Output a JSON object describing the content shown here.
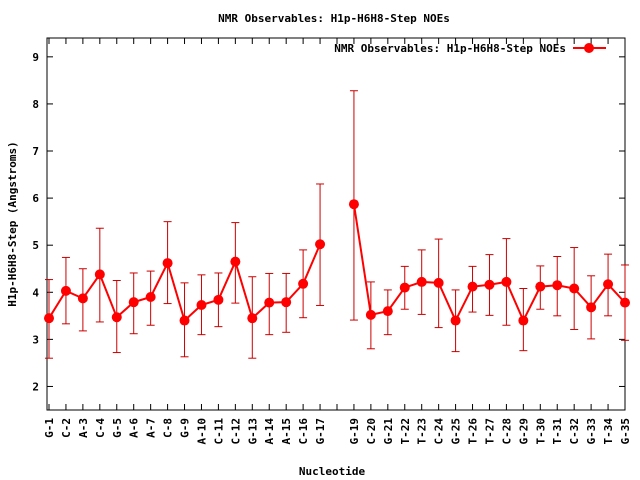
{
  "chart_data": {
    "type": "line",
    "title": "NMR Observables: H1p-H6H8-Step NOEs",
    "xlabel": "Nucleotide",
    "ylabel": "H1p-H6H8-Step (Angstroms)",
    "legend": {
      "label": "NMR Observables: H1p-H6H8-Step NOEs",
      "placement": "top-right"
    },
    "ylim": [
      1.5,
      9.4
    ],
    "yticks": [
      2,
      3,
      4,
      5,
      6,
      7,
      8,
      9
    ],
    "grid": false,
    "series_color": "#ff0000",
    "error_color": "#cc0000",
    "categories": [
      "G-1",
      "C-2",
      "A-3",
      "C-4",
      "G-5",
      "A-6",
      "A-7",
      "C-8",
      "G-9",
      "A-10",
      "C-11",
      "C-12",
      "G-13",
      "A-14",
      "A-15",
      "C-16",
      "G-17",
      "",
      "G-19",
      "C-20",
      "G-21",
      "T-22",
      "T-23",
      "C-24",
      "G-25",
      "T-26",
      "T-27",
      "C-28",
      "G-29",
      "T-30",
      "T-31",
      "C-32",
      "G-33",
      "T-34",
      "G-35"
    ],
    "values": [
      3.45,
      4.03,
      3.87,
      4.38,
      3.47,
      3.79,
      3.9,
      4.62,
      3.4,
      3.73,
      3.84,
      4.65,
      3.45,
      3.78,
      3.79,
      4.18,
      5.02,
      null,
      5.87,
      3.52,
      3.6,
      4.1,
      4.22,
      4.2,
      3.4,
      4.12,
      4.16,
      4.22,
      3.4,
      4.12,
      4.15,
      4.08,
      3.68,
      4.17,
      3.78
    ],
    "err_low": [
      2.6,
      3.33,
      3.18,
      3.37,
      2.72,
      3.12,
      3.3,
      3.76,
      2.63,
      3.1,
      3.27,
      3.77,
      2.6,
      3.1,
      3.15,
      3.46,
      3.72,
      null,
      3.41,
      2.8,
      3.1,
      3.64,
      3.53,
      3.25,
      2.74,
      3.58,
      3.51,
      3.3,
      2.76,
      3.64,
      3.5,
      3.21,
      3.01,
      3.5,
      2.98
    ],
    "err_high": [
      4.27,
      4.74,
      4.5,
      5.36,
      4.25,
      4.41,
      4.45,
      5.5,
      4.2,
      4.37,
      4.41,
      5.48,
      4.33,
      4.4,
      4.4,
      4.9,
      6.3,
      null,
      8.28,
      4.22,
      4.05,
      4.55,
      4.9,
      5.13,
      4.05,
      4.55,
      4.8,
      5.14,
      4.08,
      4.56,
      4.76,
      4.95,
      4.35,
      4.81,
      4.58
    ]
  }
}
